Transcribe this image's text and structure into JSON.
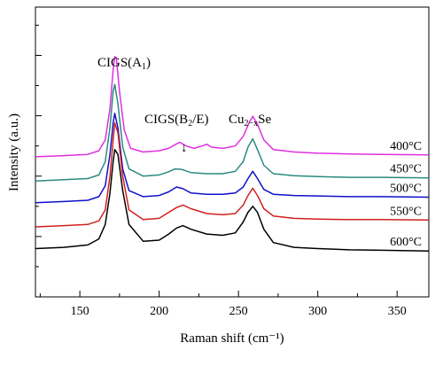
{
  "chart_data": {
    "type": "line",
    "title": "",
    "xlabel": "Raman shift (cm⁻¹)",
    "ylabel": "Intensity (a.u.)",
    "xlim": [
      122,
      370
    ],
    "ylim": [
      0,
      1.2
    ],
    "xticks": [
      150,
      200,
      250,
      300,
      350
    ],
    "xtick_labels": [
      "150",
      "200",
      "250",
      "300",
      "350"
    ],
    "grid": false,
    "legend": "none",
    "annotations": {
      "peak_a1": {
        "main": "CIGS(A",
        "sub": "1",
        "close": ")"
      },
      "peak_b2e": {
        "main": "CIGS(B",
        "sub": "2",
        "close": "/E)"
      },
      "peak_cu": {
        "pre": "Cu",
        "sub": "2−x",
        "post": "Se"
      },
      "arrow": "↓"
    },
    "series": [
      {
        "name": "400°C",
        "color": "#e030e0",
        "points": [
          [
            122,
            0.58
          ],
          [
            140,
            0.585
          ],
          [
            155,
            0.59
          ],
          [
            162,
            0.605
          ],
          [
            166,
            0.65
          ],
          [
            169,
            0.78
          ],
          [
            171,
            0.94
          ],
          [
            172,
            0.995
          ],
          [
            173,
            0.99
          ],
          [
            175,
            0.85
          ],
          [
            178,
            0.69
          ],
          [
            182,
            0.615
          ],
          [
            190,
            0.6
          ],
          [
            200,
            0.605
          ],
          [
            206,
            0.615
          ],
          [
            210,
            0.63
          ],
          [
            213,
            0.64
          ],
          [
            217,
            0.625
          ],
          [
            222,
            0.615
          ],
          [
            227,
            0.625
          ],
          [
            230,
            0.632
          ],
          [
            233,
            0.62
          ],
          [
            240,
            0.615
          ],
          [
            248,
            0.625
          ],
          [
            253,
            0.665
          ],
          [
            257,
            0.725
          ],
          [
            259,
            0.748
          ],
          [
            262,
            0.715
          ],
          [
            266,
            0.65
          ],
          [
            272,
            0.61
          ],
          [
            285,
            0.6
          ],
          [
            300,
            0.595
          ],
          [
            320,
            0.592
          ],
          [
            340,
            0.59
          ],
          [
            370,
            0.588
          ]
        ]
      },
      {
        "name": "450°C",
        "color": "#2a8a80",
        "points": [
          [
            122,
            0.48
          ],
          [
            140,
            0.485
          ],
          [
            155,
            0.49
          ],
          [
            162,
            0.505
          ],
          [
            166,
            0.56
          ],
          [
            169,
            0.7
          ],
          [
            171,
            0.85
          ],
          [
            172,
            0.88
          ],
          [
            174,
            0.8
          ],
          [
            177,
            0.62
          ],
          [
            181,
            0.53
          ],
          [
            190,
            0.5
          ],
          [
            200,
            0.505
          ],
          [
            206,
            0.518
          ],
          [
            210,
            0.53
          ],
          [
            214,
            0.528
          ],
          [
            220,
            0.515
          ],
          [
            230,
            0.51
          ],
          [
            240,
            0.51
          ],
          [
            248,
            0.52
          ],
          [
            253,
            0.56
          ],
          [
            256,
            0.62
          ],
          [
            259,
            0.655
          ],
          [
            262,
            0.61
          ],
          [
            266,
            0.545
          ],
          [
            272,
            0.51
          ],
          [
            285,
            0.502
          ],
          [
            300,
            0.498
          ],
          [
            320,
            0.495
          ],
          [
            340,
            0.495
          ],
          [
            370,
            0.493
          ]
        ]
      },
      {
        "name": "500°C",
        "color": "#1010c8",
        "points": [
          [
            122,
            0.39
          ],
          [
            140,
            0.395
          ],
          [
            155,
            0.4
          ],
          [
            162,
            0.415
          ],
          [
            166,
            0.46
          ],
          [
            169,
            0.59
          ],
          [
            171,
            0.72
          ],
          [
            172,
            0.76
          ],
          [
            174,
            0.7
          ],
          [
            177,
            0.53
          ],
          [
            181,
            0.44
          ],
          [
            190,
            0.415
          ],
          [
            200,
            0.42
          ],
          [
            206,
            0.435
          ],
          [
            211,
            0.455
          ],
          [
            215,
            0.448
          ],
          [
            220,
            0.43
          ],
          [
            230,
            0.425
          ],
          [
            240,
            0.425
          ],
          [
            248,
            0.43
          ],
          [
            253,
            0.455
          ],
          [
            256,
            0.49
          ],
          [
            259,
            0.52
          ],
          [
            262,
            0.49
          ],
          [
            266,
            0.445
          ],
          [
            272,
            0.425
          ],
          [
            285,
            0.42
          ],
          [
            300,
            0.418
          ],
          [
            320,
            0.415
          ],
          [
            340,
            0.415
          ],
          [
            370,
            0.413
          ]
        ]
      },
      {
        "name": "550°C",
        "color": "#d02020",
        "points": [
          [
            122,
            0.29
          ],
          [
            140,
            0.295
          ],
          [
            155,
            0.3
          ],
          [
            162,
            0.315
          ],
          [
            166,
            0.36
          ],
          [
            169,
            0.5
          ],
          [
            171,
            0.65
          ],
          [
            172,
            0.72
          ],
          [
            174,
            0.68
          ],
          [
            177,
            0.5
          ],
          [
            181,
            0.36
          ],
          [
            190,
            0.32
          ],
          [
            200,
            0.325
          ],
          [
            206,
            0.35
          ],
          [
            211,
            0.37
          ],
          [
            215,
            0.38
          ],
          [
            220,
            0.365
          ],
          [
            230,
            0.345
          ],
          [
            240,
            0.34
          ],
          [
            248,
            0.345
          ],
          [
            253,
            0.38
          ],
          [
            256,
            0.42
          ],
          [
            259,
            0.45
          ],
          [
            262,
            0.42
          ],
          [
            266,
            0.365
          ],
          [
            272,
            0.335
          ],
          [
            285,
            0.325
          ],
          [
            300,
            0.322
          ],
          [
            320,
            0.32
          ],
          [
            340,
            0.32
          ],
          [
            370,
            0.318
          ]
        ]
      },
      {
        "name": "600°C",
        "color": "#000000",
        "points": [
          [
            122,
            0.2
          ],
          [
            140,
            0.205
          ],
          [
            155,
            0.215
          ],
          [
            162,
            0.24
          ],
          [
            166,
            0.3
          ],
          [
            169,
            0.43
          ],
          [
            171,
            0.56
          ],
          [
            172,
            0.61
          ],
          [
            174,
            0.59
          ],
          [
            177,
            0.44
          ],
          [
            181,
            0.3
          ],
          [
            190,
            0.23
          ],
          [
            200,
            0.235
          ],
          [
            206,
            0.26
          ],
          [
            211,
            0.285
          ],
          [
            215,
            0.295
          ],
          [
            220,
            0.28
          ],
          [
            230,
            0.26
          ],
          [
            240,
            0.255
          ],
          [
            248,
            0.265
          ],
          [
            253,
            0.31
          ],
          [
            256,
            0.35
          ],
          [
            259,
            0.375
          ],
          [
            262,
            0.35
          ],
          [
            266,
            0.28
          ],
          [
            272,
            0.225
          ],
          [
            285,
            0.205
          ],
          [
            300,
            0.2
          ],
          [
            320,
            0.195
          ],
          [
            340,
            0.193
          ],
          [
            370,
            0.19
          ]
        ]
      }
    ]
  }
}
